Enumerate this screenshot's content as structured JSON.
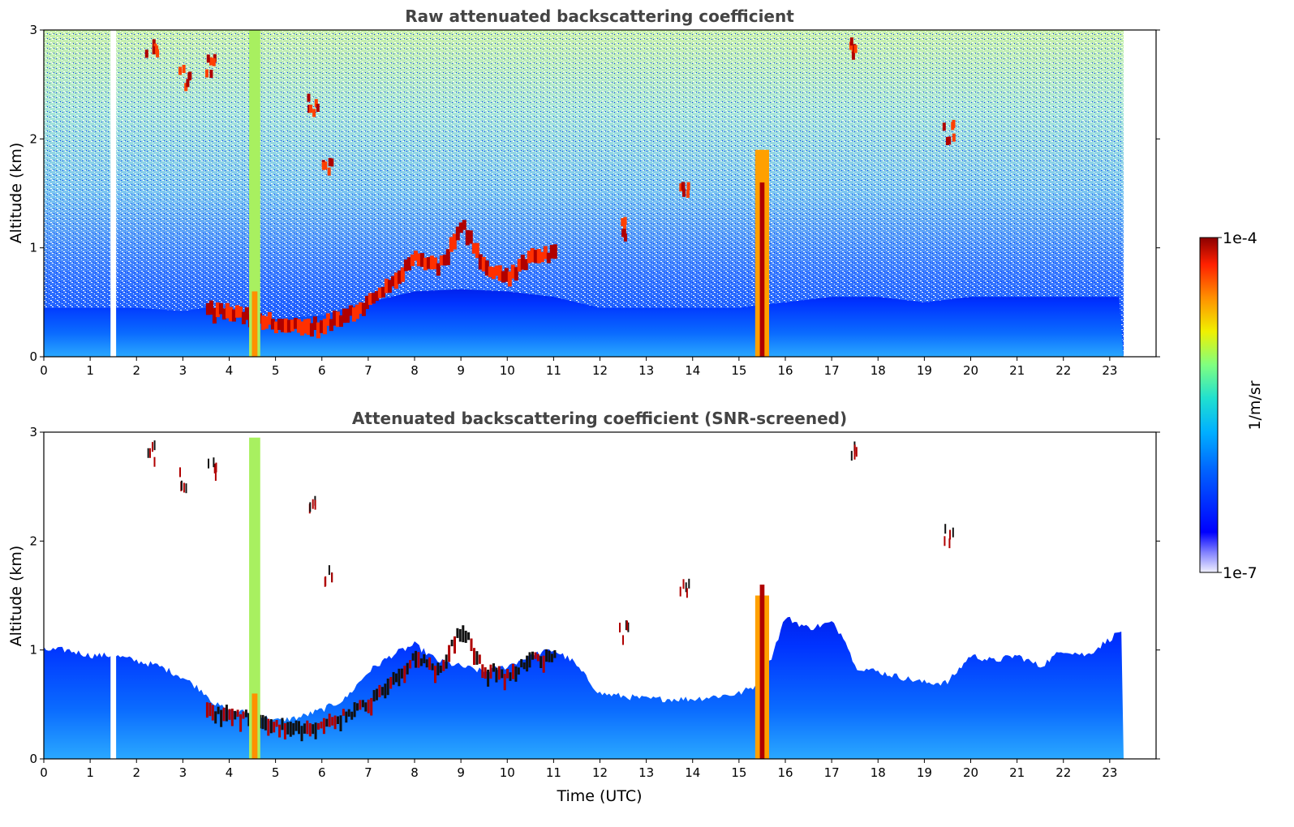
{
  "chart_data": [
    {
      "type": "heatmap",
      "title": "Raw attenuated backscattering coefficient",
      "xlabel": "",
      "ylabel": "Altitude (km)",
      "xlim": [
        0,
        24
      ],
      "ylim": [
        0,
        3
      ],
      "xticks": [
        0,
        1,
        2,
        3,
        4,
        5,
        6,
        7,
        8,
        9,
        10,
        11,
        12,
        13,
        14,
        15,
        16,
        17,
        18,
        19,
        20,
        21,
        22,
        23
      ],
      "yticks": [
        0,
        1,
        2,
        3
      ],
      "data_end_hour": 23.3,
      "data_gap_hours": [
        1.5
      ],
      "grid": false,
      "features": {
        "boundary_layer_top_km": {
          "x": [
            0,
            1,
            2,
            3,
            3.5,
            4,
            5,
            6,
            7,
            8,
            9,
            10,
            11,
            12,
            13,
            14,
            15,
            16,
            17,
            18,
            19,
            20,
            21,
            22,
            23.3
          ],
          "y": [
            0.45,
            0.45,
            0.45,
            0.42,
            0.45,
            0.42,
            0.35,
            0.38,
            0.5,
            0.6,
            0.62,
            0.6,
            0.55,
            0.45,
            0.45,
            0.45,
            0.45,
            0.5,
            0.55,
            0.55,
            0.5,
            0.55,
            0.55,
            0.55,
            0.55
          ]
        },
        "cloud_layer_base_km": {
          "x": [
            3.5,
            4,
            4.4,
            5,
            5.5,
            6,
            6.5,
            7,
            7.5,
            8,
            8.5,
            9,
            9.5,
            10,
            10.5,
            11
          ],
          "y": [
            0.42,
            0.4,
            0.35,
            0.3,
            0.25,
            0.3,
            0.38,
            0.5,
            0.7,
            0.9,
            0.8,
            1.2,
            0.8,
            0.75,
            0.9,
            0.95
          ]
        },
        "precipitation_columns_hours": [
          4.55,
          15.5
        ],
        "cirrus_patches": [
          {
            "x": 2.3,
            "y": 2.85
          },
          {
            "x": 3.0,
            "y": 2.6
          },
          {
            "x": 3.6,
            "y": 2.7
          },
          {
            "x": 6.1,
            "y": 1.75
          },
          {
            "x": 5.8,
            "y": 2.35
          },
          {
            "x": 17.5,
            "y": 2.85
          },
          {
            "x": 19.5,
            "y": 2.1
          },
          {
            "x": 12.5,
            "y": 1.2
          },
          {
            "x": 13.8,
            "y": 1.6
          }
        ]
      }
    },
    {
      "type": "heatmap",
      "title": "Attenuated backscattering coefficient (SNR-screened)",
      "xlabel": "Time (UTC)",
      "ylabel": "Altitude (km)",
      "xlim": [
        0,
        24
      ],
      "ylim": [
        0,
        3
      ],
      "xticks": [
        0,
        1,
        2,
        3,
        4,
        5,
        6,
        7,
        8,
        9,
        10,
        11,
        12,
        13,
        14,
        15,
        16,
        17,
        18,
        19,
        20,
        21,
        22,
        23
      ],
      "yticks": [
        0,
        1,
        2,
        3
      ],
      "data_end_hour": 23.3,
      "data_gap_hours": [
        1.5
      ],
      "grid": false,
      "screened_top_km": {
        "x": [
          0,
          0.5,
          1,
          1.5,
          2,
          2.5,
          3,
          3.5,
          3.7,
          4,
          4.4,
          4.8,
          5,
          5.5,
          6,
          6.5,
          7,
          7.5,
          8,
          8.5,
          9,
          9.5,
          10,
          10.5,
          11,
          11.4,
          12,
          13,
          14,
          15,
          15.5,
          16,
          16.5,
          17,
          17.3,
          17.5,
          18,
          18.5,
          19,
          19.5,
          20,
          20.5,
          21,
          21.5,
          22,
          22.5,
          23,
          23.3
        ],
        "y": [
          1.0,
          1.0,
          0.95,
          0.95,
          0.9,
          0.85,
          0.75,
          0.6,
          0.5,
          0.45,
          0.42,
          0.38,
          0.35,
          0.38,
          0.45,
          0.55,
          0.8,
          0.95,
          1.05,
          0.9,
          0.85,
          0.8,
          0.85,
          0.95,
          1.0,
          0.9,
          0.6,
          0.55,
          0.55,
          0.6,
          0.7,
          1.3,
          1.2,
          1.25,
          1.1,
          0.85,
          0.8,
          0.75,
          0.7,
          0.7,
          0.95,
          0.9,
          0.95,
          0.85,
          1.0,
          0.95,
          1.1,
          1.2
        ]
      }
    }
  ],
  "colorbar": {
    "label": "1/m/sr",
    "max_label": "1e-4",
    "min_label": "1e-7",
    "scale": "log",
    "colormap": "jet"
  }
}
